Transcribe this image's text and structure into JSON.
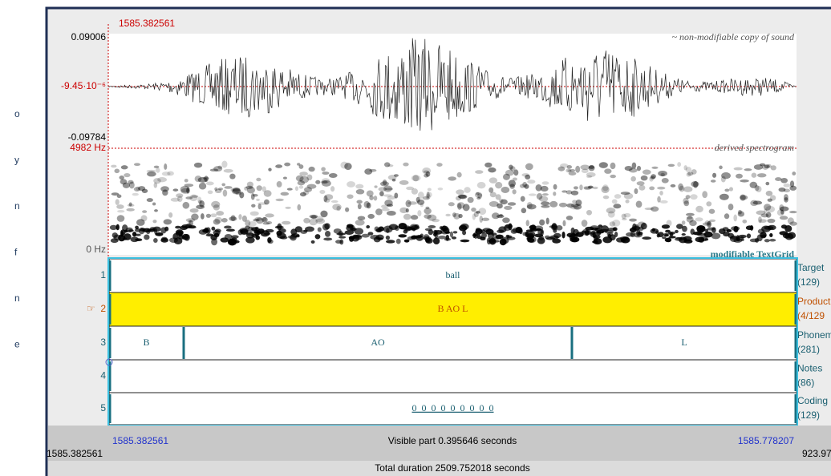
{
  "slide_fragments": [
    "o",
    "y",
    "n",
    "f",
    "n",
    "e"
  ],
  "editor": {
    "cursor_time": "1585.382561",
    "waveform": {
      "max": "0.09006",
      "mid": "-9.45·10⁻⁶",
      "min": "-0.09784",
      "label": "~ non-modifiable copy of sound"
    },
    "spectrogram": {
      "top": "4982 Hz",
      "bottom": "0 Hz",
      "label": "derived spectrogram"
    },
    "textgrid_label": "modifiable TextGrid",
    "tiers": [
      {
        "number": "1",
        "name": "Target",
        "count": "(129)",
        "intervals": [
          "ball"
        ]
      },
      {
        "number": "2",
        "name": "Product",
        "count": "(4/129",
        "intervals": [
          "B AO L"
        ]
      },
      {
        "number": "3",
        "name": "Phonem",
        "count": "(281)",
        "intervals": [
          "B",
          "AO",
          "L"
        ]
      },
      {
        "number": "4",
        "name": "Notes",
        "count": "(86)",
        "intervals": [
          ""
        ]
      },
      {
        "number": "5",
        "name": "Coding",
        "count": "(129)",
        "intervals": [
          "0_0_0_0_0_0_0_0_0"
        ]
      }
    ],
    "visible_start": "1585.382561",
    "visible_part": "Visible part 0.395646 seconds",
    "visible_end": "1585.778207",
    "left_time": "1585.382561",
    "right_time": "923.97",
    "total_duration": "Total duration 2509.752018 seconds"
  }
}
